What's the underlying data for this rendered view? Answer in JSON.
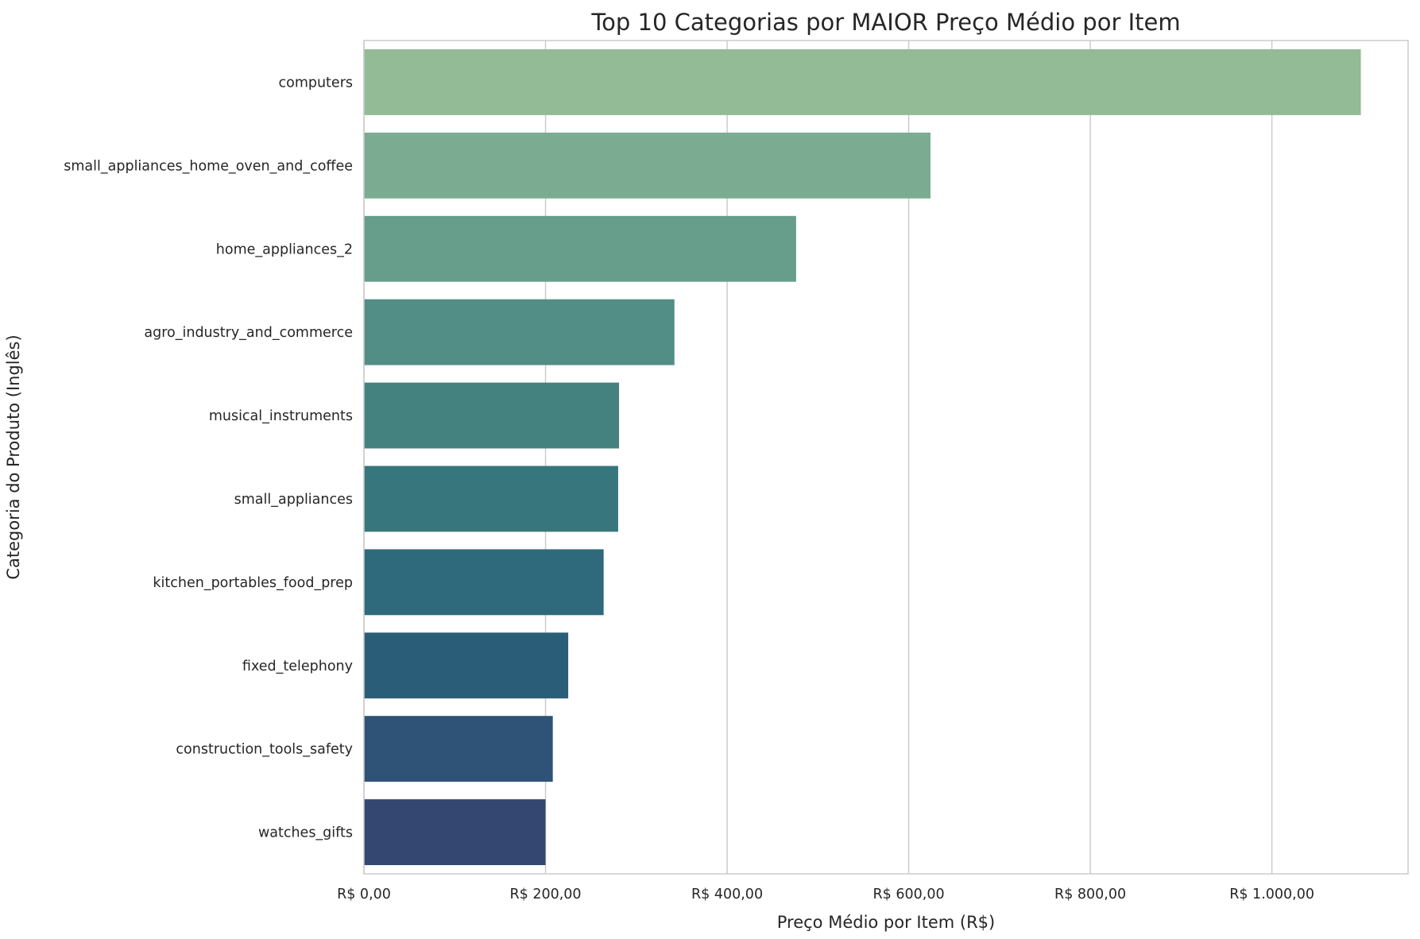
{
  "chart_data": {
    "type": "bar",
    "orientation": "horizontal",
    "title": "Top 10 Categorias por MAIOR Preço Médio por Item",
    "xlabel": "Preço Médio por Item (R$)",
    "ylabel": "Categoria do Produto (Inglês)",
    "xlim": [
      0,
      1150
    ],
    "grid": true,
    "x_ticks": [
      0,
      200,
      400,
      600,
      800,
      1000
    ],
    "x_tick_labels": [
      "R$ 0,00",
      "R$ 200,00",
      "R$ 400,00",
      "R$ 600,00",
      "R$ 800,00",
      "R$ 1.000,00"
    ],
    "categories": [
      "computers",
      "small_appliances_home_oven_and_coffee",
      "home_appliances_2",
      "agro_industry_and_commerce",
      "musical_instruments",
      "small_appliances",
      "kitchen_portables_food_prep",
      "fixed_telephony",
      "construction_tools_safety",
      "watches_gifts"
    ],
    "values": [
      1098,
      624,
      476,
      342,
      281,
      280,
      264,
      225,
      208,
      200
    ],
    "colors": [
      "#93bb96",
      "#7bac92",
      "#669e8b",
      "#538e86",
      "#448280",
      "#38767d",
      "#2e6a7b",
      "#2a5e78",
      "#2e5376",
      "#334770"
    ]
  }
}
